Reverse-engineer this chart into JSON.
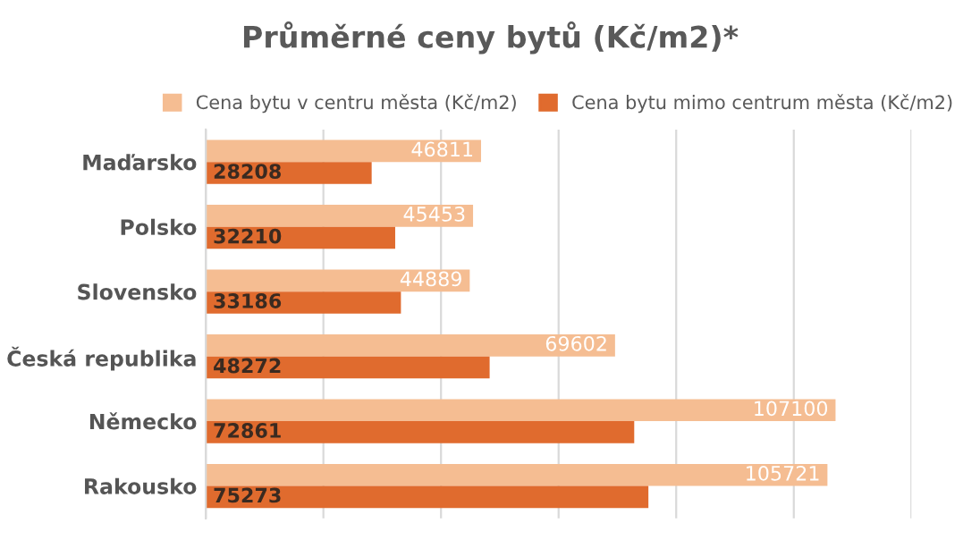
{
  "chart_data": {
    "type": "bar",
    "orientation": "horizontal",
    "title": "Průměrné ceny bytů (Kč/m2)*",
    "categories": [
      "Maďarsko",
      "Polsko",
      "Slovensko",
      "Česká republika",
      "Německo",
      "Rakousko"
    ],
    "series": [
      {
        "name": "Cena bytu v centru města (Kč/m2)",
        "color": "#f5bd92",
        "values": [
          46811,
          45453,
          44889,
          69602,
          107100,
          105721
        ]
      },
      {
        "name": "Cena bytu mimo centrum města (Kč/m2)",
        "color": "#e06b2e",
        "values": [
          28208,
          32210,
          33186,
          48272,
          72861,
          75273
        ]
      }
    ],
    "xlim": [
      0,
      120000
    ],
    "xticks": [
      {
        "value": 0,
        "label": null
      },
      {
        "value": 20000,
        "label": null
      },
      {
        "value": 40000,
        "label": null
      },
      {
        "value": 60000,
        "label": null
      },
      {
        "value": 80000,
        "label": null
      },
      {
        "value": 100000,
        "label": null
      },
      {
        "value": 120000,
        "label": null
      }
    ],
    "tick_labels": "y",
    "grid": "x",
    "legend": "top",
    "data_labels": true
  }
}
